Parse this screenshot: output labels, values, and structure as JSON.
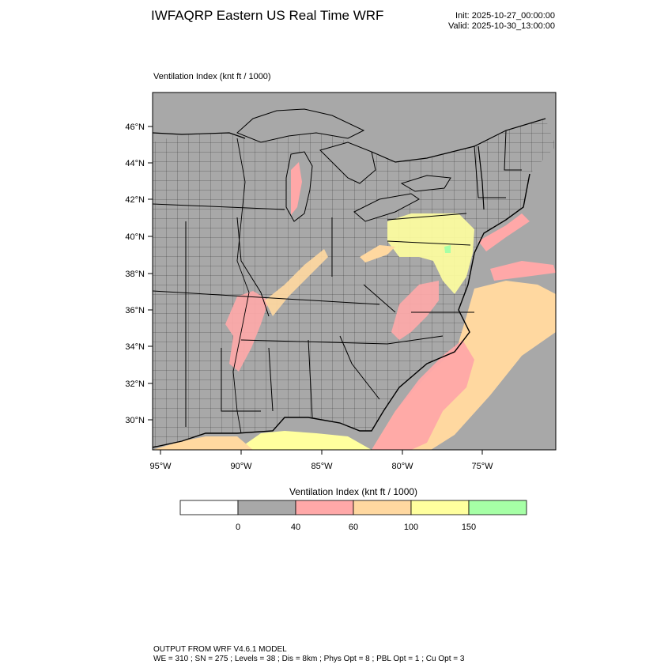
{
  "header": {
    "title": "IWFAQRP Eastern US Real Time WRF",
    "init": "Init: 2025-10-27_00:00:00",
    "valid": "Valid: 2025-10-30_13:00:00"
  },
  "plot": {
    "field_label": "Ventilation Index   (knt ft / 1000)",
    "lat_ticks": [
      "46°N",
      "44°N",
      "42°N",
      "40°N",
      "38°N",
      "36°N",
      "34°N",
      "32°N",
      "30°N"
    ],
    "lon_ticks": [
      "95°W",
      "90°W",
      "85°W",
      "80°W",
      "75°W"
    ]
  },
  "colorbar": {
    "title": "Ventilation Index  (knt ft / 1000)",
    "colors": [
      "#ffffff",
      "#a8a8a8",
      "#ffa8a8",
      "#ffd8a0",
      "#ffff9e",
      "#a6ffa6"
    ],
    "labels": [
      "0",
      "40",
      "60",
      "100",
      "150"
    ]
  },
  "footer": {
    "line1": "OUTPUT FROM WRF V4.6.1 MODEL",
    "line2": "WE = 310 ; SN = 275 ; Levels = 38 ; Dis = 8km ; Phys Opt = 8 ; PBL Opt = 1 ; Cu Opt = 3"
  }
}
